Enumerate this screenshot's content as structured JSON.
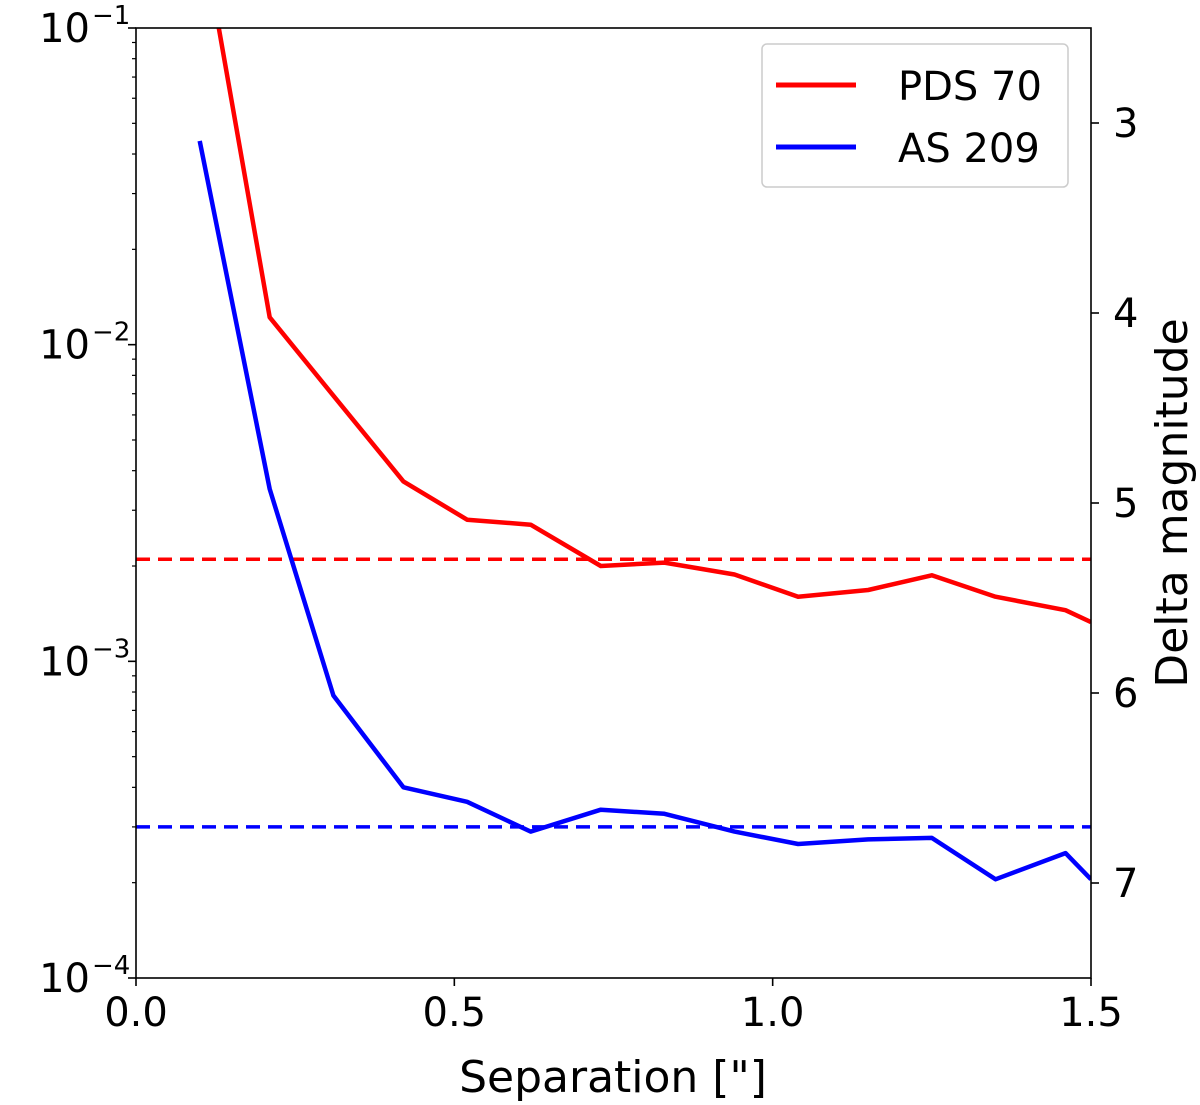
{
  "chart_data": {
    "type": "line",
    "title": "",
    "xlabel": "Separation [\"]",
    "ylabel_right": "Delta magnitude",
    "xlim": [
      0.0,
      1.5
    ],
    "ylim": [
      0.0001,
      0.1
    ],
    "yscale": "log",
    "y_right_lim": [
      2.5,
      7.5
    ],
    "x_ticks": [
      0.0,
      0.5,
      1.0,
      1.5
    ],
    "x_tick_labels": [
      "0.0",
      "0.5",
      "1.0",
      "1.5"
    ],
    "y_ticks": [
      {
        "value": 0.1,
        "base": "10",
        "exp": "−1"
      },
      {
        "value": 0.01,
        "base": "10",
        "exp": "−2"
      },
      {
        "value": 0.001,
        "base": "10",
        "exp": "−3"
      },
      {
        "value": 0.0001,
        "base": "10",
        "exp": "−4"
      }
    ],
    "y_right_ticks": [
      3,
      4,
      5,
      6,
      7
    ],
    "y_right_tick_labels": [
      "3",
      "4",
      "5",
      "6",
      "7"
    ],
    "legend_position": "top-right",
    "series": [
      {
        "name": "PDS 70",
        "color": "#ff0000",
        "x": [
          0.13,
          0.21,
          0.31,
          0.42,
          0.52,
          0.62,
          0.73,
          0.83,
          0.94,
          1.04,
          1.15,
          1.25,
          1.35,
          1.46,
          1.5
        ],
        "y": [
          0.1,
          0.0122,
          0.0069,
          0.0037,
          0.0028,
          0.0027,
          0.002,
          0.00205,
          0.00188,
          0.0016,
          0.00168,
          0.00187,
          0.0016,
          0.00145,
          0.00133
        ]
      },
      {
        "name": "AS 209",
        "color": "#0000ff",
        "x": [
          0.1,
          0.21,
          0.31,
          0.42,
          0.52,
          0.62,
          0.73,
          0.83,
          0.94,
          1.04,
          1.15,
          1.25,
          1.35,
          1.46,
          1.5
        ],
        "y": [
          0.044,
          0.0035,
          0.00078,
          0.0004,
          0.00036,
          0.00029,
          0.00034,
          0.00033,
          0.00029,
          0.000265,
          0.000274,
          0.000277,
          0.000205,
          0.000248,
          0.000205
        ]
      }
    ],
    "hlines": [
      {
        "name": "PDS 70 limit",
        "color": "#ff0000",
        "y": 0.0021,
        "style": "dashed"
      },
      {
        "name": "AS 209 limit",
        "color": "#0000ff",
        "y": 0.0003,
        "style": "dashed"
      }
    ]
  }
}
